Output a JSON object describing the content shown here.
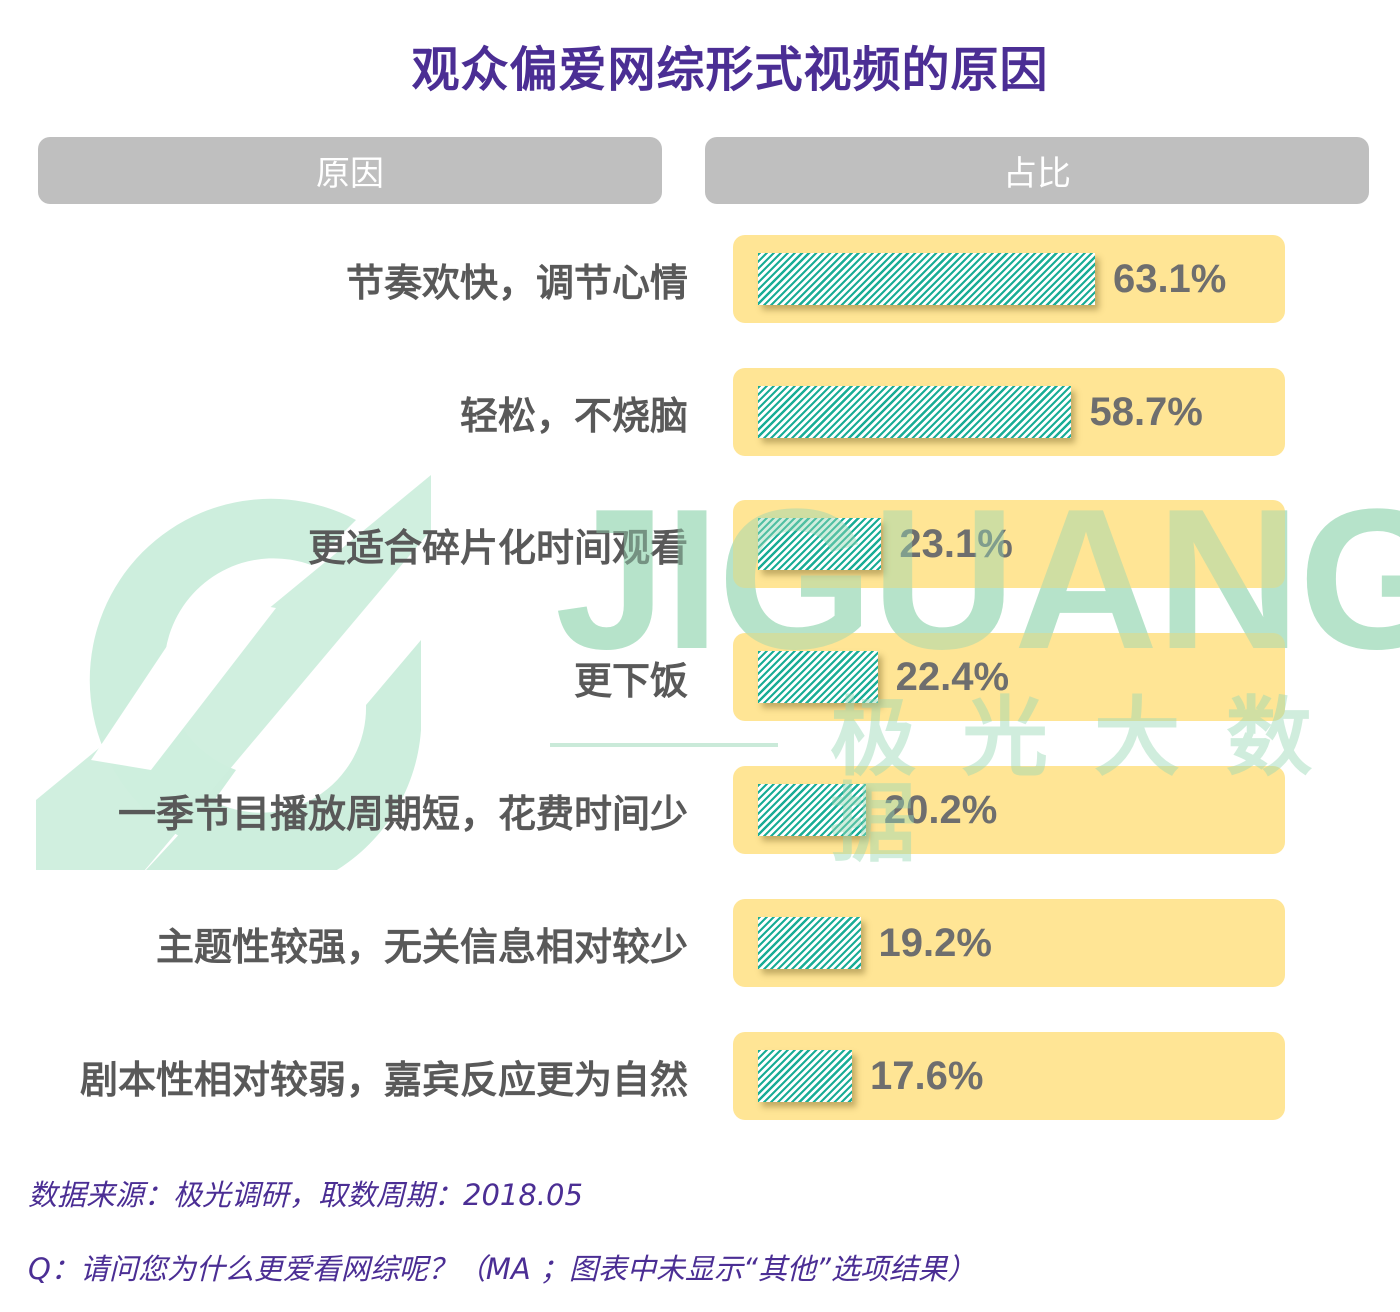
{
  "title": "观众偏爱网综形式视频的原因",
  "headers": {
    "reason": "原因",
    "share": "占比"
  },
  "rows": [
    {
      "label": "节奏欢快，调节心情",
      "value": 63.1,
      "display": "63.1%"
    },
    {
      "label": "轻松，不烧脑",
      "value": 58.7,
      "display": "58.7%"
    },
    {
      "label": "更适合碎片化时间观看",
      "value": 23.1,
      "display": "23.1%"
    },
    {
      "label": "更下饭",
      "value": 22.4,
      "display": "22.4%"
    },
    {
      "label": "一季节目播放周期短，花费时间少",
      "value": 20.2,
      "display": "20.2%"
    },
    {
      "label": "主题性较强，无关信息相对较少",
      "value": 19.2,
      "display": "19.2%"
    },
    {
      "label": "剧本性相对较弱，嘉宾反应更为自然",
      "value": 17.6,
      "display": "17.6%"
    }
  ],
  "watermark": {
    "brand": "JIGUANG",
    "sub": "极光大数据"
  },
  "footer": {
    "source": "数据来源：极光调研，取数周期：2018.05",
    "question": "Q：请问您为什么更爱看网综呢？（MA ；图表中未显示“其他”选项结果）"
  },
  "colors": {
    "title": "#4b2e94",
    "header_bg": "#bfbfbf",
    "track": "#ffe48f",
    "bar_stripe": "#1aad96",
    "label": "#595959",
    "value": "#6e6e6e",
    "watermark": "#96d6b4"
  },
  "chart_data": {
    "type": "bar",
    "orientation": "horizontal",
    "title": "观众偏爱网综形式视频的原因",
    "xlabel": "占比",
    "ylabel": "原因",
    "categories": [
      "节奏欢快，调节心情",
      "轻松，不烧脑",
      "更适合碎片化时间观看",
      "更下饭",
      "一季节目播放周期短，花费时间少",
      "主题性较强，无关信息相对较少",
      "剧本性相对较弱，嘉宾反应更为自然"
    ],
    "values": [
      63.1,
      58.7,
      23.1,
      22.4,
      20.2,
      19.2,
      17.6
    ],
    "unit": "%",
    "data_labels": true,
    "grid": false,
    "legend": null,
    "xlim": [
      0,
      100
    ],
    "source": "数据来源：极光调研，取数周期：2018.05",
    "note": "Q：请问您为什么更爱看网综呢？（MA ；图表中未显示“其他”选项结果）"
  }
}
